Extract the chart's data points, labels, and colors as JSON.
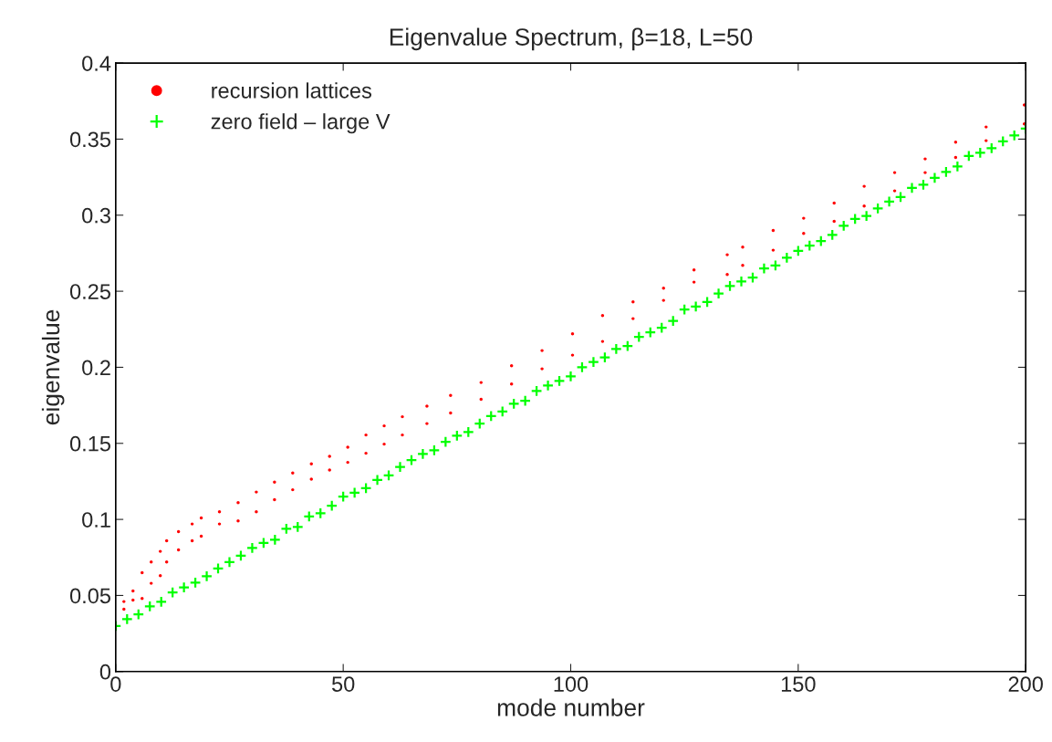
{
  "chart_data": {
    "type": "scatter",
    "title": "Eigenvalue Spectrum, β=18, L=50",
    "xlabel": "mode number",
    "ylabel": "eigenvalue",
    "xlim": [
      0,
      200
    ],
    "xticks": [
      0,
      50,
      100,
      150,
      200
    ],
    "ylim": [
      0,
      0.4
    ],
    "yticks": [
      0,
      0.05,
      0.1,
      0.15,
      0.2,
      0.25,
      0.3,
      0.35,
      0.4
    ],
    "grid": false,
    "legend": "top left",
    "series": [
      {
        "name": "recursion lattices",
        "color": "#ff0000",
        "marker": "circle",
        "x": [
          1.8,
          1.8,
          3.8,
          3.8,
          5.8,
          5.8,
          7.8,
          7.8,
          9.8,
          9.8,
          11.2,
          11.2,
          13.8,
          13.8,
          16.8,
          16.8,
          18.8,
          18.8,
          22.8,
          22.8,
          26.9,
          26.9,
          30.9,
          30.9,
          34.9,
          34.9,
          38.9,
          38.9,
          43,
          43,
          47,
          47,
          51,
          51,
          55,
          55,
          59,
          59,
          63,
          63,
          68.4,
          68.4,
          73.6,
          73.6,
          80.3,
          80.3,
          87,
          87,
          93.7,
          93.7,
          100.4,
          100.4,
          107,
          107,
          113.7,
          113.7,
          120.4,
          120.4,
          127.1,
          127.1,
          134.4,
          134.4,
          137.8,
          137.8,
          144.5,
          144.5,
          151.2,
          151.2,
          157.9,
          157.9,
          164.5,
          164.5,
          171.2,
          171.2,
          177.9,
          177.9,
          184.6,
          184.6,
          191.3,
          191.3,
          199.7,
          199.7
        ],
        "values": [
          0.046,
          0.041,
          0.053,
          0.047,
          0.065,
          0.048,
          0.072,
          0.058,
          0.079,
          0.063,
          0.086,
          0.072,
          0.092,
          0.08,
          0.097,
          0.086,
          0.101,
          0.089,
          0.105,
          0.097,
          0.111,
          0.099,
          0.118,
          0.105,
          0.1245,
          0.113,
          0.1305,
          0.1195,
          0.1365,
          0.1265,
          0.1415,
          0.1325,
          0.1475,
          0.1375,
          0.1555,
          0.1435,
          0.1615,
          0.1495,
          0.1675,
          0.1555,
          0.1745,
          0.163,
          0.1815,
          0.17,
          0.19,
          0.179,
          0.201,
          0.189,
          0.211,
          0.199,
          0.222,
          0.208,
          0.234,
          0.217,
          0.243,
          0.232,
          0.252,
          0.244,
          0.264,
          0.256,
          0.274,
          0.261,
          0.279,
          0.267,
          0.29,
          0.277,
          0.298,
          0.288,
          0.308,
          0.296,
          0.319,
          0.306,
          0.328,
          0.316,
          0.337,
          0.328,
          0.348,
          0.338,
          0.358,
          0.349,
          0.3725,
          0.36
        ]
      },
      {
        "name": "zero field – large V",
        "color": "#00ff00",
        "marker": "cross",
        "x": [
          0,
          2.5,
          5,
          7.5,
          10,
          12.5,
          15,
          17.5,
          20,
          22.5,
          25,
          27.5,
          30,
          32.5,
          35,
          37.5,
          40,
          42.5,
          45,
          47.5,
          50,
          52.5,
          55,
          57.5,
          60,
          62.5,
          65,
          67.5,
          70,
          72.5,
          75,
          77.5,
          80,
          82.5,
          85,
          87.5,
          90,
          92.5,
          95,
          97.5,
          100,
          102.5,
          105,
          107.5,
          110,
          112.5,
          115,
          117.5,
          120,
          122.5,
          125,
          127.5,
          130,
          132.5,
          135,
          137.5,
          140,
          142.5,
          145,
          147.5,
          150,
          152.5,
          155,
          157.5,
          160,
          162.5,
          165,
          167.5,
          170,
          172.5,
          175,
          177.5,
          180,
          182.5,
          185,
          187.5,
          190,
          192.5,
          195,
          197.5,
          200
        ],
        "values": [
          0.03,
          0.0344,
          0.0376,
          0.0428,
          0.0459,
          0.052,
          0.0553,
          0.0584,
          0.0626,
          0.0678,
          0.072,
          0.0761,
          0.0813,
          0.0845,
          0.0866,
          0.0939,
          0.095,
          0.102,
          0.104,
          0.109,
          0.115,
          0.1175,
          0.1205,
          0.126,
          0.129,
          0.1345,
          0.139,
          0.143,
          0.1455,
          0.151,
          0.155,
          0.1575,
          0.163,
          0.168,
          0.171,
          0.176,
          0.178,
          0.1845,
          0.188,
          0.191,
          0.194,
          0.2,
          0.2035,
          0.2065,
          0.212,
          0.214,
          0.22,
          0.223,
          0.226,
          0.2305,
          0.238,
          0.24,
          0.243,
          0.2485,
          0.2535,
          0.2565,
          0.259,
          0.265,
          0.267,
          0.272,
          0.2765,
          0.28,
          0.283,
          0.287,
          0.293,
          0.2975,
          0.2995,
          0.3045,
          0.309,
          0.312,
          0.318,
          0.32,
          0.3245,
          0.3285,
          0.332,
          0.339,
          0.341,
          0.344,
          0.3485,
          0.3525,
          0.357
        ]
      }
    ]
  }
}
